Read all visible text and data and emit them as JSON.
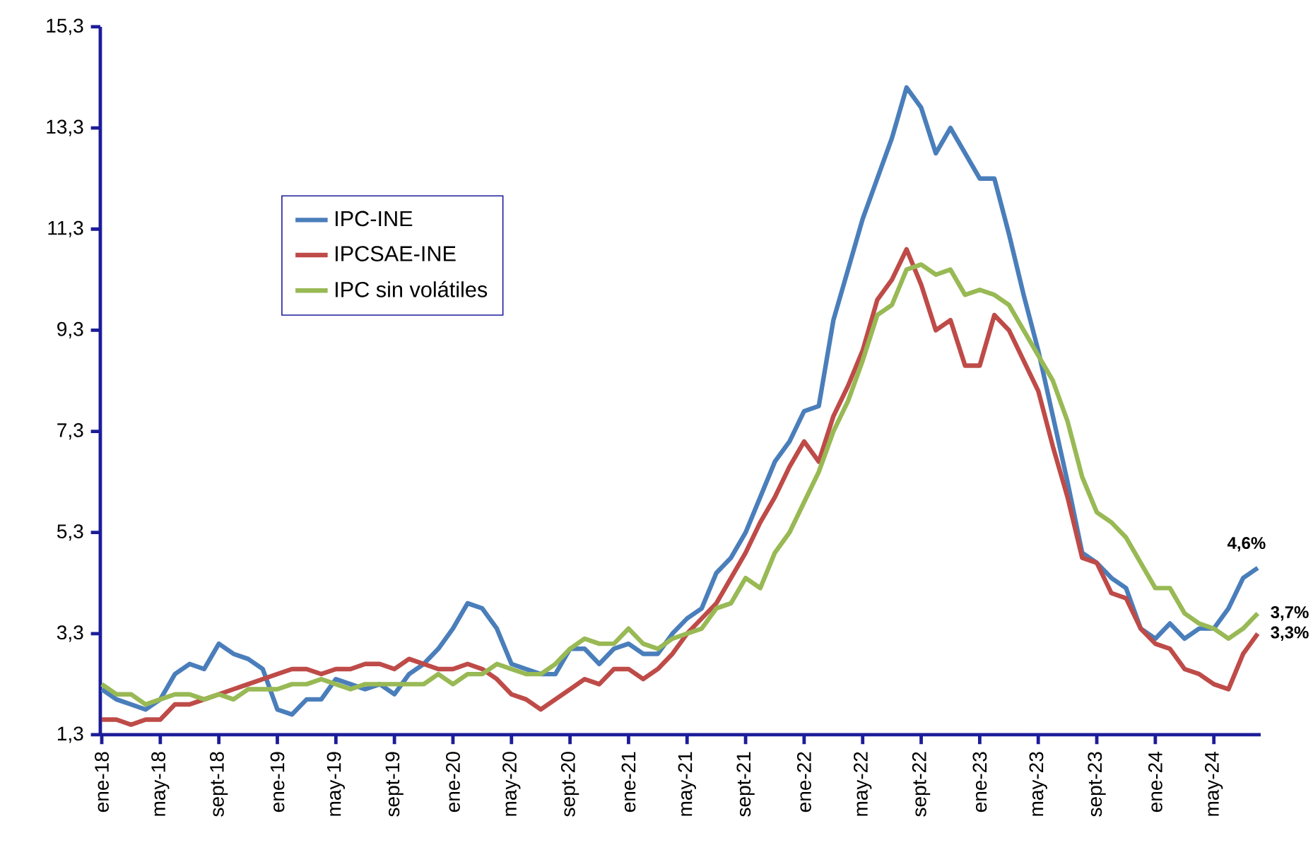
{
  "chart_data": {
    "type": "line",
    "categories": [
      "ene-18",
      null,
      null,
      null,
      "may-18",
      null,
      null,
      null,
      "sept-18",
      null,
      null,
      null,
      "ene-19",
      null,
      null,
      null,
      "may-19",
      null,
      null,
      null,
      "sept-19",
      null,
      null,
      null,
      "ene-20",
      null,
      null,
      null,
      "may-20",
      null,
      null,
      null,
      "sept-20",
      null,
      null,
      null,
      "ene-21",
      null,
      null,
      null,
      "may-21",
      null,
      null,
      null,
      "sept-21",
      null,
      null,
      null,
      "ene-22",
      null,
      null,
      null,
      "may-22",
      null,
      null,
      null,
      "sept-22",
      null,
      null,
      null,
      "ene-23",
      null,
      null,
      null,
      "may-23",
      null,
      null,
      null,
      "sept-23",
      null,
      null,
      null,
      "ene-24",
      null,
      null,
      null,
      "may-24",
      null,
      null,
      null
    ],
    "series": [
      {
        "name": "IPC-INE",
        "color": "#4a7ebb",
        "values": [
          2.2,
          2.0,
          1.9,
          1.8,
          2.0,
          2.5,
          2.7,
          2.6,
          3.1,
          2.9,
          2.8,
          2.6,
          1.8,
          1.7,
          2.0,
          2.0,
          2.4,
          2.3,
          2.2,
          2.3,
          2.1,
          2.5,
          2.7,
          3.0,
          3.4,
          3.9,
          3.8,
          3.4,
          2.7,
          2.6,
          2.5,
          2.5,
          3.0,
          3.0,
          2.7,
          3.0,
          3.1,
          2.9,
          2.9,
          3.3,
          3.6,
          3.8,
          4.5,
          4.8,
          5.3,
          6.0,
          6.7,
          7.1,
          7.7,
          7.8,
          9.5,
          10.5,
          11.5,
          12.3,
          13.1,
          14.1,
          13.7,
          12.8,
          13.3,
          12.8,
          12.3,
          12.3,
          11.2,
          10.0,
          8.9,
          7.6,
          6.3,
          4.9,
          4.7,
          4.4,
          4.2,
          3.4,
          3.2,
          3.5,
          3.2,
          3.4,
          3.4,
          3.8,
          4.4,
          4.6
        ],
        "value_labels": [
          null,
          null,
          null,
          null,
          null,
          null,
          null,
          null,
          null,
          null,
          null,
          null,
          null,
          null,
          null,
          null,
          null,
          null,
          null,
          null,
          null,
          null,
          null,
          null,
          null,
          null,
          null,
          null,
          null,
          null,
          null,
          null,
          null,
          null,
          null,
          null,
          null,
          null,
          null,
          null,
          null,
          null,
          null,
          null,
          null,
          null,
          null,
          null,
          null,
          null,
          null,
          null,
          null,
          null,
          null,
          null,
          null,
          null,
          null,
          null,
          null,
          null,
          null,
          null,
          null,
          null,
          null,
          null,
          null,
          null,
          null,
          null,
          null,
          null,
          null,
          null,
          null,
          null,
          null,
          "4,6%"
        ]
      },
      {
        "name": "IPCSAE-INE",
        "color": "#be4b48",
        "values": [
          1.6,
          1.6,
          1.5,
          1.6,
          1.6,
          1.9,
          1.9,
          2.0,
          2.1,
          2.2,
          2.3,
          2.4,
          2.5,
          2.6,
          2.6,
          2.5,
          2.6,
          2.6,
          2.7,
          2.7,
          2.6,
          2.8,
          2.7,
          2.6,
          2.6,
          2.7,
          2.6,
          2.4,
          2.1,
          2.0,
          1.8,
          2.0,
          2.2,
          2.4,
          2.3,
          2.6,
          2.6,
          2.4,
          2.6,
          2.9,
          3.3,
          3.6,
          3.9,
          4.4,
          4.9,
          5.5,
          6.0,
          6.6,
          7.1,
          6.7,
          7.6,
          8.2,
          8.9,
          9.9,
          10.3,
          10.9,
          10.2,
          9.3,
          9.5,
          8.6,
          8.6,
          9.6,
          9.3,
          8.7,
          8.1,
          7.0,
          6.0,
          4.8,
          4.7,
          4.1,
          4.0,
          3.4,
          3.1,
          3.0,
          2.6,
          2.5,
          2.3,
          2.2,
          2.9,
          3.3
        ],
        "value_labels": [
          null,
          null,
          null,
          null,
          null,
          null,
          null,
          null,
          null,
          null,
          null,
          null,
          null,
          null,
          null,
          null,
          null,
          null,
          null,
          null,
          null,
          null,
          null,
          null,
          null,
          null,
          null,
          null,
          null,
          null,
          null,
          null,
          null,
          null,
          null,
          null,
          null,
          null,
          null,
          null,
          null,
          null,
          null,
          null,
          null,
          null,
          null,
          null,
          null,
          null,
          null,
          null,
          null,
          null,
          null,
          null,
          null,
          null,
          null,
          null,
          null,
          null,
          null,
          null,
          null,
          null,
          null,
          null,
          null,
          null,
          null,
          null,
          null,
          null,
          null,
          null,
          null,
          null,
          null,
          "3,3%"
        ]
      },
      {
        "name": "IPC sin volátiles",
        "color": "#98b954",
        "values": [
          2.3,
          2.1,
          2.1,
          1.9,
          2.0,
          2.1,
          2.1,
          2.0,
          2.1,
          2.0,
          2.2,
          2.2,
          2.2,
          2.3,
          2.3,
          2.4,
          2.3,
          2.2,
          2.3,
          2.3,
          2.3,
          2.3,
          2.3,
          2.5,
          2.3,
          2.5,
          2.5,
          2.7,
          2.6,
          2.5,
          2.5,
          2.7,
          3.0,
          3.2,
          3.1,
          3.1,
          3.4,
          3.1,
          3.0,
          3.2,
          3.3,
          3.4,
          3.8,
          3.9,
          4.4,
          4.2,
          4.9,
          5.3,
          5.9,
          6.5,
          7.3,
          7.9,
          8.7,
          9.6,
          9.8,
          10.5,
          10.6,
          10.4,
          10.5,
          10.0,
          10.1,
          10.0,
          9.8,
          9.3,
          8.8,
          8.3,
          7.5,
          6.4,
          5.7,
          5.5,
          5.2,
          4.7,
          4.2,
          4.2,
          3.7,
          3.5,
          3.4,
          3.2,
          3.4,
          3.7
        ],
        "value_labels": [
          null,
          null,
          null,
          null,
          null,
          null,
          null,
          null,
          null,
          null,
          null,
          null,
          null,
          null,
          null,
          null,
          null,
          null,
          null,
          null,
          null,
          null,
          null,
          null,
          null,
          null,
          null,
          null,
          null,
          null,
          null,
          null,
          null,
          null,
          null,
          null,
          null,
          null,
          null,
          null,
          null,
          null,
          null,
          null,
          null,
          null,
          null,
          null,
          null,
          null,
          null,
          null,
          null,
          null,
          null,
          null,
          null,
          null,
          null,
          null,
          null,
          null,
          null,
          null,
          null,
          null,
          null,
          null,
          null,
          null,
          null,
          null,
          null,
          null,
          null,
          null,
          null,
          null,
          null,
          "3,7%"
        ]
      }
    ],
    "ylim": [
      1.3,
      15.3
    ],
    "yticks": [
      {
        "value": 1.3,
        "label": "1,3"
      },
      {
        "value": 3.3,
        "label": "3,3"
      },
      {
        "value": 5.3,
        "label": "5,3"
      },
      {
        "value": 7.3,
        "label": "7,3"
      },
      {
        "value": 9.3,
        "label": "9,3"
      },
      {
        "value": 11.3,
        "label": "11,3"
      },
      {
        "value": 13.3,
        "label": "13,3"
      },
      {
        "value": 15.3,
        "label": "15,3"
      }
    ],
    "legend": "top left",
    "marker": "none",
    "line_style": "solid",
    "grid": false
  }
}
